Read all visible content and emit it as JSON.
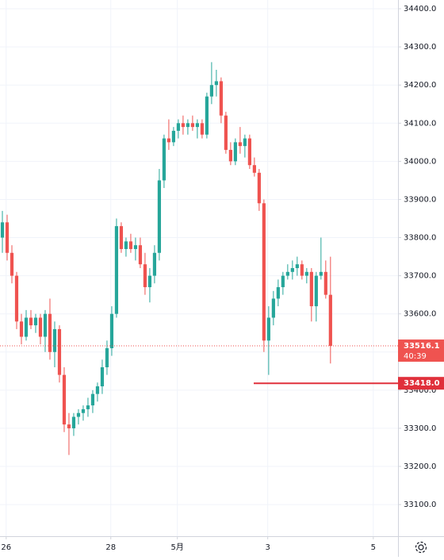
{
  "chart_data": {
    "type": "candlestick",
    "up_color": "#26a69a",
    "down_color": "#ef5350",
    "grid": true,
    "x": [
      0,
      1,
      2,
      3,
      4,
      5,
      6,
      7,
      8,
      9,
      10,
      11,
      12,
      13,
      14,
      15,
      16,
      17,
      18,
      19,
      20,
      21,
      22,
      23,
      24,
      25,
      26,
      27,
      28,
      29,
      30,
      31,
      32,
      33,
      34,
      35,
      36,
      37,
      38,
      39,
      40,
      41,
      42,
      43,
      44,
      45,
      46,
      47,
      48,
      49,
      50,
      51,
      52,
      53,
      54,
      55,
      56,
      57,
      58,
      59,
      60,
      61,
      62,
      63,
      64,
      65,
      66,
      67,
      68,
      69
    ],
    "open": [
      33800,
      33840,
      33760,
      33700,
      33580,
      33540,
      33590,
      33570,
      33590,
      33540,
      33600,
      33500,
      33560,
      33440,
      33310,
      33300,
      33330,
      33340,
      33350,
      33360,
      33390,
      33410,
      33460,
      33510,
      33600,
      33830,
      33770,
      33790,
      33770,
      33780,
      33730,
      33670,
      33700,
      33760,
      33950,
      34060,
      34050,
      34080,
      34100,
      34090,
      34100,
      34090,
      34100,
      34070,
      34170,
      34200,
      34210,
      34120,
      34030,
      34000,
      34050,
      34040,
      34060,
      33990,
      33970,
      33890,
      33530,
      33590,
      33640,
      33670,
      33700,
      33710,
      33720,
      33730,
      33700,
      33710,
      33620,
      33700,
      33710,
      33650
    ],
    "high": [
      33870,
      33860,
      33780,
      33710,
      33600,
      33610,
      33610,
      33600,
      33600,
      33610,
      33640,
      33580,
      33570,
      33460,
      33340,
      33340,
      33350,
      33360,
      33380,
      33400,
      33420,
      33480,
      33530,
      33620,
      33850,
      33840,
      33800,
      33810,
      33800,
      33800,
      33760,
      33720,
      33780,
      33980,
      34070,
      34110,
      34090,
      34110,
      34120,
      34110,
      34120,
      34110,
      34110,
      34180,
      34260,
      34240,
      34220,
      34130,
      34050,
      34060,
      34090,
      34070,
      34070,
      34010,
      33980,
      33900,
      33620,
      33660,
      33690,
      33710,
      33730,
      33740,
      33750,
      33740,
      33720,
      33720,
      33710,
      33800,
      33740,
      33750
    ],
    "low": [
      33760,
      33740,
      33680,
      33560,
      33520,
      33530,
      33560,
      33550,
      33520,
      33500,
      33480,
      33460,
      33420,
      33290,
      33230,
      33280,
      33310,
      33320,
      33330,
      33340,
      33370,
      33390,
      33440,
      33490,
      33590,
      33760,
      33750,
      33760,
      33740,
      33720,
      33650,
      33630,
      33680,
      33740,
      33930,
      34030,
      34040,
      34060,
      34070,
      34070,
      34080,
      34060,
      34060,
      34060,
      34150,
      34170,
      34100,
      34020,
      33990,
      33990,
      34020,
      34010,
      33980,
      33960,
      33870,
      33500,
      33440,
      33570,
      33620,
      33650,
      33690,
      33690,
      33700,
      33690,
      33680,
      33580,
      33580,
      33690,
      33640,
      33470
    ],
    "close": [
      33840,
      33760,
      33700,
      33580,
      33540,
      33590,
      33570,
      33590,
      33540,
      33600,
      33500,
      33560,
      33440,
      33310,
      33300,
      33330,
      33340,
      33350,
      33360,
      33390,
      33410,
      33460,
      33510,
      33600,
      33830,
      33770,
      33790,
      33770,
      33780,
      33730,
      33670,
      33700,
      33760,
      33950,
      34060,
      34050,
      34080,
      34100,
      34090,
      34100,
      34090,
      34100,
      34070,
      34170,
      34200,
      34210,
      34120,
      34030,
      34000,
      34050,
      34040,
      34060,
      33990,
      33970,
      33890,
      33530,
      33590,
      33640,
      33670,
      33700,
      33710,
      33720,
      33730,
      33700,
      33710,
      33620,
      33700,
      33710,
      33650,
      33516.1
    ],
    "xlim": [
      -0.5,
      83.2
    ],
    "xticks": [
      {
        "value": 0.8,
        "label": "26"
      },
      {
        "value": 22.8,
        "label": "28"
      },
      {
        "value": 36.8,
        "label": "5月"
      },
      {
        "value": 55.8,
        "label": "3"
      },
      {
        "value": 78,
        "label": "5"
      }
    ],
    "ylim": [
      33017,
      34423
    ],
    "yticks": [
      {
        "value": 33100,
        "label": "33100.0"
      },
      {
        "value": 33200,
        "label": "33200.0"
      },
      {
        "value": 33300,
        "label": "33300.0"
      },
      {
        "value": 33400,
        "label": "33400.0"
      },
      {
        "value": 33500,
        "label": "33500.0"
      },
      {
        "value": 33600,
        "label": "33600.0"
      },
      {
        "value": 33700,
        "label": "33700.0"
      },
      {
        "value": 33800,
        "label": "33800.0"
      },
      {
        "value": 33900,
        "label": "33900.0"
      },
      {
        "value": 34000,
        "label": "34000.0"
      },
      {
        "value": 34100,
        "label": "34100.0"
      },
      {
        "value": 34200,
        "label": "34200.0"
      },
      {
        "value": 34300,
        "label": "34300.0"
      },
      {
        "value": 34400,
        "label": "34400.0"
      }
    ],
    "last_price": 33516.1,
    "countdown": "40:39",
    "level": {
      "value": 33418,
      "label": "33418.0"
    }
  }
}
